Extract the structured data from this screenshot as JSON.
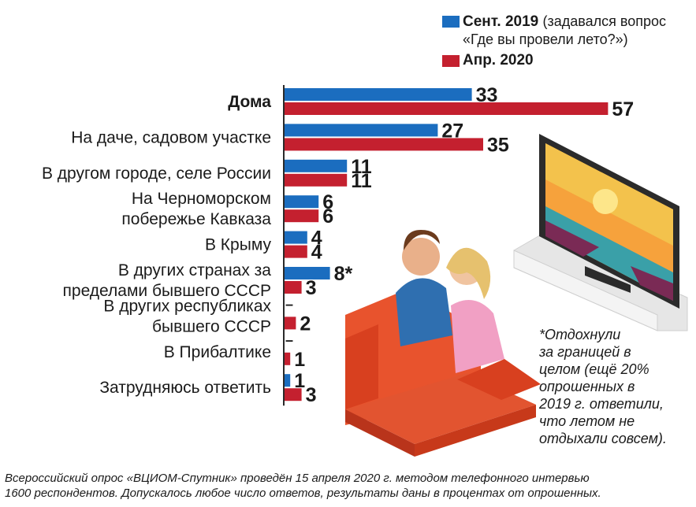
{
  "colors": {
    "sept_2019": "#1b6dbf",
    "apr_2020": "#c4202f",
    "sofa": "#e04a2a",
    "tv_frame": "#2b2b2b",
    "tv_stand": "#e9e9e9"
  },
  "legend": {
    "series_1_label": "Сент. 2019",
    "series_1_note_line1": "(задавался вопрос",
    "series_1_note_line2": "«Где вы провели лето?»)",
    "series_2_label": "Апр. 2020"
  },
  "footnote": {
    "lines": [
      "*Отдохнули",
      "за границей в",
      "целом (ещё 20%",
      "опрошенных в",
      "2019 г. ответили,",
      "что летом не",
      "отдыхали совсем)."
    ]
  },
  "bottom_note": {
    "line1": "Всероссийский опрос «ВЦИОМ-Спутник» проведён 15 апреля 2020 г. методом телефонного интервью",
    "line2": "1600 респондентов. Допускалось любое число ответов, результаты даны в процентах от опрошенных."
  },
  "illustration": {
    "icons": [
      "sofa-icon",
      "couple-icon",
      "tv-icon",
      "beach-sunset-icon"
    ]
  },
  "chart_data": {
    "type": "bar",
    "orientation": "horizontal",
    "unit": "%",
    "xlim": [
      0,
      57
    ],
    "categories": [
      {
        "lines": [
          "Дома"
        ],
        "bold": true
      },
      {
        "lines": [
          "На даче, садовом участке"
        ],
        "bold": false
      },
      {
        "lines": [
          "В другом городе, селе России"
        ],
        "bold": false
      },
      {
        "lines": [
          "На Черноморском",
          "побережье Кавказа"
        ],
        "bold": false
      },
      {
        "lines": [
          "В Крыму"
        ],
        "bold": false
      },
      {
        "lines": [
          "В других странах за",
          "пределами бывшего СССР"
        ],
        "bold": false
      },
      {
        "lines": [
          "В других республиках",
          "бывшего СССР"
        ],
        "bold": false
      },
      {
        "lines": [
          "В Прибалтике"
        ],
        "bold": false
      },
      {
        "lines": [
          "Затрудняюсь ответить"
        ],
        "bold": false
      }
    ],
    "series": [
      {
        "name": "Сент. 2019",
        "values": [
          33,
          27,
          11,
          6,
          4,
          8,
          null,
          null,
          1
        ],
        "labels": [
          "33",
          "27",
          "11",
          "6",
          "4",
          "8*",
          "–",
          "–",
          "1"
        ]
      },
      {
        "name": "Апр. 2020",
        "values": [
          57,
          35,
          11,
          6,
          4,
          3,
          2,
          1,
          3
        ],
        "labels": [
          "57",
          "35",
          "11",
          "6",
          "4",
          "3",
          "2",
          "1",
          "3"
        ]
      }
    ]
  }
}
